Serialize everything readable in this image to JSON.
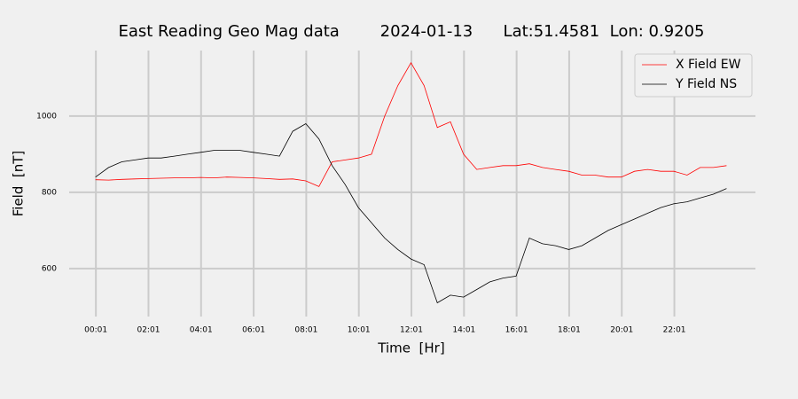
{
  "chart_data": {
    "type": "line",
    "title": "East Reading Geo Mag data        2024-01-13      Lat:51.4581  Lon: 0.9205",
    "x_label": "Time  [Hr]",
    "y_label": "Field  [nT]",
    "x": [
      0,
      0.5,
      1,
      1.5,
      2,
      2.5,
      3,
      3.5,
      4,
      4.5,
      5,
      5.5,
      6,
      6.5,
      7,
      7.5,
      8,
      8.5,
      9,
      9.5,
      10,
      10.5,
      11,
      11.5,
      12,
      12.5,
      13,
      13.5,
      14,
      14.5,
      15,
      15.5,
      16,
      16.5,
      17,
      17.5,
      18,
      18.5,
      19,
      19.5,
      20,
      20.5,
      21,
      21.5,
      22,
      22.5,
      23,
      23.5,
      24
    ],
    "series": [
      {
        "name": "X Field EW",
        "color": "#ff0000",
        "values": [
          833,
          832,
          834,
          835,
          836,
          837,
          838,
          838,
          839,
          838,
          840,
          839,
          838,
          836,
          834,
          835,
          830,
          815,
          880,
          885,
          890,
          900,
          1000,
          1080,
          1140,
          1080,
          970,
          985,
          900,
          860,
          865,
          870,
          870,
          875,
          865,
          860,
          855,
          845,
          845,
          840,
          840,
          855,
          860,
          855,
          855,
          845,
          865,
          865,
          870
        ]
      },
      {
        "name": "Y Field NS",
        "color": "#000000",
        "values": [
          840,
          865,
          880,
          885,
          890,
          890,
          895,
          900,
          905,
          910,
          910,
          910,
          905,
          900,
          895,
          960,
          980,
          940,
          870,
          820,
          760,
          720,
          680,
          650,
          625,
          610,
          510,
          530,
          525,
          545,
          565,
          575,
          580,
          680,
          665,
          660,
          650,
          660,
          680,
          700,
          715,
          730,
          745,
          760,
          770,
          775,
          785,
          795,
          810
        ]
      }
    ],
    "xlim": [
      -1.0,
      25.1
    ],
    "ylim": [
      474,
      1172
    ],
    "xticks": [
      {
        "value": 0.0167,
        "label": "00:01"
      },
      {
        "value": 2.0167,
        "label": "02:01"
      },
      {
        "value": 4.0167,
        "label": "04:01"
      },
      {
        "value": 6.0167,
        "label": "06:01"
      },
      {
        "value": 8.0167,
        "label": "08:01"
      },
      {
        "value": 10.0167,
        "label": "10:01"
      },
      {
        "value": 12.0167,
        "label": "12:01"
      },
      {
        "value": 14.0167,
        "label": "14:01"
      },
      {
        "value": 16.0167,
        "label": "16:01"
      },
      {
        "value": 18.0167,
        "label": "18:01"
      },
      {
        "value": 20.0167,
        "label": "20:01"
      },
      {
        "value": 22.0167,
        "label": "22:01"
      }
    ],
    "yticks": [
      600,
      800,
      1000
    ],
    "grid": true,
    "legend": "upper right"
  }
}
